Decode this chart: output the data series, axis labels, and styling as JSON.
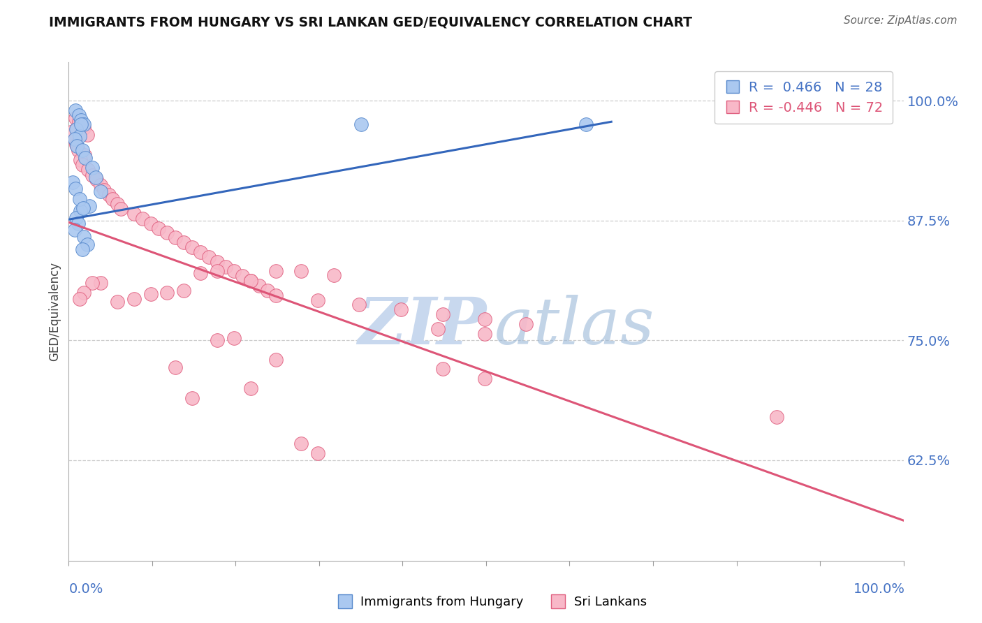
{
  "title": "IMMIGRANTS FROM HUNGARY VS SRI LANKAN GED/EQUIVALENCY CORRELATION CHART",
  "source": "Source: ZipAtlas.com",
  "ylabel": "GED/Equivalency",
  "ytick_labels": [
    "100.0%",
    "87.5%",
    "75.0%",
    "62.5%"
  ],
  "ytick_values": [
    1.0,
    0.875,
    0.75,
    0.625
  ],
  "xlim": [
    0.0,
    1.0
  ],
  "ylim": [
    0.52,
    1.04
  ],
  "legend_blue_r": "0.466",
  "legend_blue_n": "28",
  "legend_pink_r": "-0.446",
  "legend_pink_n": "72",
  "blue_scatter_x": [
    0.008,
    0.012,
    0.015,
    0.018,
    0.009,
    0.013,
    0.007,
    0.01,
    0.016,
    0.02,
    0.028,
    0.032,
    0.038,
    0.025,
    0.014,
    0.009,
    0.011,
    0.007,
    0.018,
    0.022,
    0.016,
    0.015,
    0.35,
    0.62,
    0.005,
    0.008,
    0.013,
    0.017
  ],
  "blue_scatter_y": [
    0.99,
    0.985,
    0.98,
    0.975,
    0.97,
    0.963,
    0.96,
    0.953,
    0.948,
    0.94,
    0.93,
    0.92,
    0.905,
    0.89,
    0.885,
    0.878,
    0.872,
    0.865,
    0.858,
    0.85,
    0.845,
    0.975,
    0.975,
    0.975,
    0.915,
    0.908,
    0.897,
    0.888
  ],
  "pink_scatter_x": [
    0.008,
    0.012,
    0.018,
    0.005,
    0.022,
    0.007,
    0.009,
    0.011,
    0.019,
    0.014,
    0.016,
    0.023,
    0.028,
    0.033,
    0.038,
    0.042,
    0.048,
    0.052,
    0.058,
    0.062,
    0.078,
    0.088,
    0.098,
    0.108,
    0.118,
    0.128,
    0.138,
    0.148,
    0.158,
    0.168,
    0.178,
    0.188,
    0.198,
    0.208,
    0.218,
    0.228,
    0.238,
    0.248,
    0.298,
    0.348,
    0.398,
    0.448,
    0.498,
    0.548,
    0.442,
    0.498,
    0.248,
    0.278,
    0.318,
    0.218,
    0.178,
    0.158,
    0.138,
    0.118,
    0.098,
    0.078,
    0.058,
    0.038,
    0.028,
    0.018,
    0.013,
    0.128,
    0.218,
    0.148,
    0.848,
    0.178,
    0.198,
    0.248,
    0.448,
    0.498,
    0.278,
    0.298
  ],
  "pink_scatter_y": [
    0.982,
    0.978,
    0.972,
    0.968,
    0.964,
    0.959,
    0.954,
    0.948,
    0.943,
    0.938,
    0.933,
    0.928,
    0.922,
    0.918,
    0.912,
    0.907,
    0.902,
    0.897,
    0.892,
    0.887,
    0.882,
    0.877,
    0.872,
    0.867,
    0.862,
    0.857,
    0.852,
    0.847,
    0.842,
    0.837,
    0.832,
    0.827,
    0.822,
    0.817,
    0.812,
    0.807,
    0.802,
    0.797,
    0.792,
    0.787,
    0.782,
    0.777,
    0.772,
    0.767,
    0.762,
    0.757,
    0.822,
    0.822,
    0.818,
    0.812,
    0.822,
    0.82,
    0.802,
    0.8,
    0.798,
    0.793,
    0.79,
    0.81,
    0.81,
    0.8,
    0.793,
    0.722,
    0.7,
    0.69,
    0.67,
    0.75,
    0.752,
    0.73,
    0.72,
    0.71,
    0.642,
    0.632
  ],
  "blue_line_x": [
    0.0,
    0.65
  ],
  "blue_line_y": [
    0.876,
    0.978
  ],
  "pink_line_x": [
    0.0,
    1.0
  ],
  "pink_line_y": [
    0.873,
    0.562
  ],
  "blue_dot_color": "#aac8f0",
  "blue_edge_color": "#5588cc",
  "pink_dot_color": "#f8b8c8",
  "pink_edge_color": "#e06080",
  "blue_line_color": "#3366bb",
  "pink_line_color": "#dd5577",
  "watermark_zip_color": "#c8d8ee",
  "watermark_atlas_color": "#9ab8d8",
  "background_color": "#ffffff",
  "grid_color": "#cccccc",
  "axis_label_color": "#4472c4",
  "title_color": "#111111",
  "ylabel_color": "#444444"
}
